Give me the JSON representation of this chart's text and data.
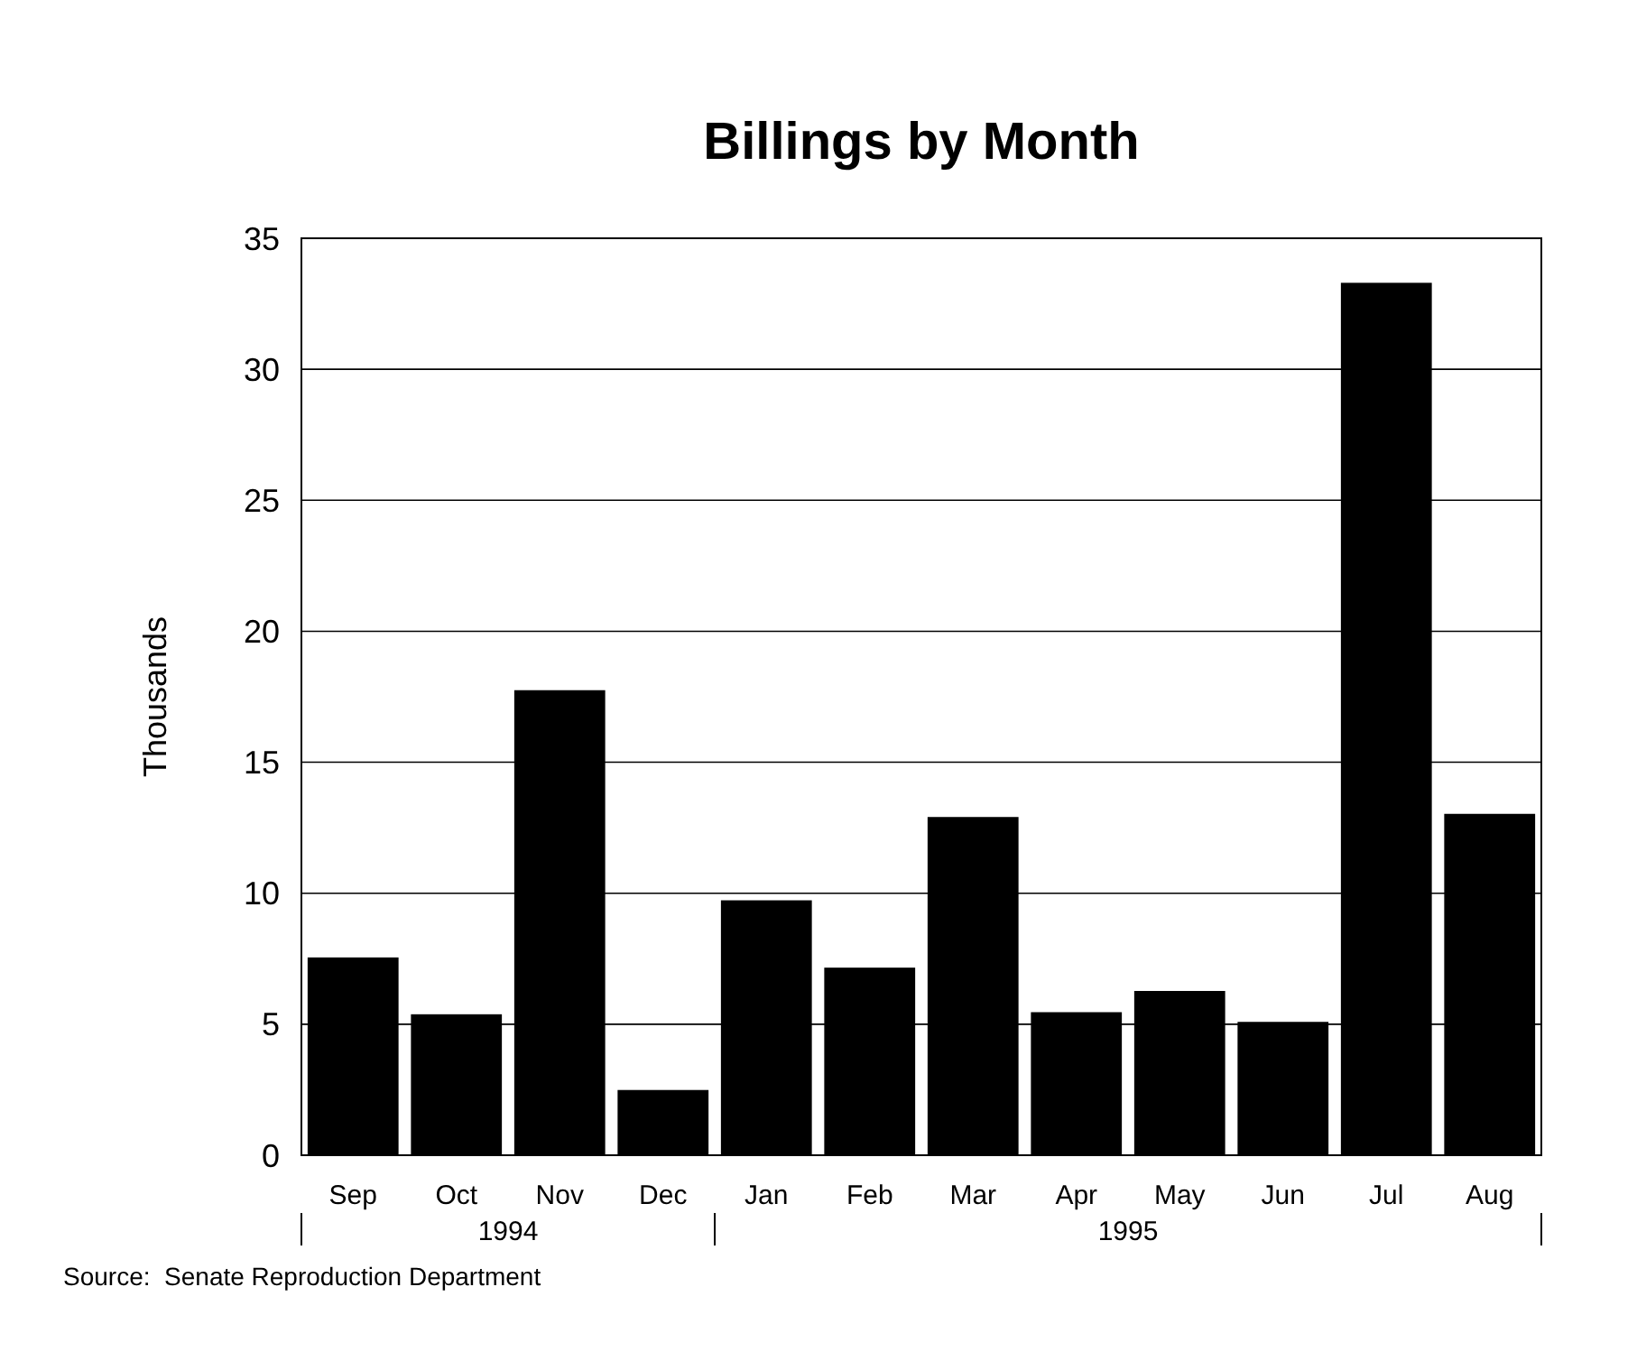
{
  "chart_data": {
    "type": "bar",
    "title": "Billings by Month",
    "ylabel": "Thousands",
    "categories": [
      "Sep",
      "Oct",
      "Nov",
      "Dec",
      "Jan",
      "Feb",
      "Mar",
      "Apr",
      "May",
      "Jun",
      "Jul",
      "Aug"
    ],
    "values": [
      7.55,
      5.38,
      17.75,
      2.49,
      9.73,
      7.16,
      12.91,
      5.46,
      6.27,
      5.09,
      33.3,
      13.03
    ],
    "color": "#000000",
    "ylim": [
      0,
      35
    ],
    "yticks": [
      0,
      5,
      10,
      15,
      20,
      25,
      30,
      35
    ],
    "grid": "y",
    "annotations": [
      "1994",
      "1995",
      "Source:  Senate Reproduction Department"
    ]
  }
}
